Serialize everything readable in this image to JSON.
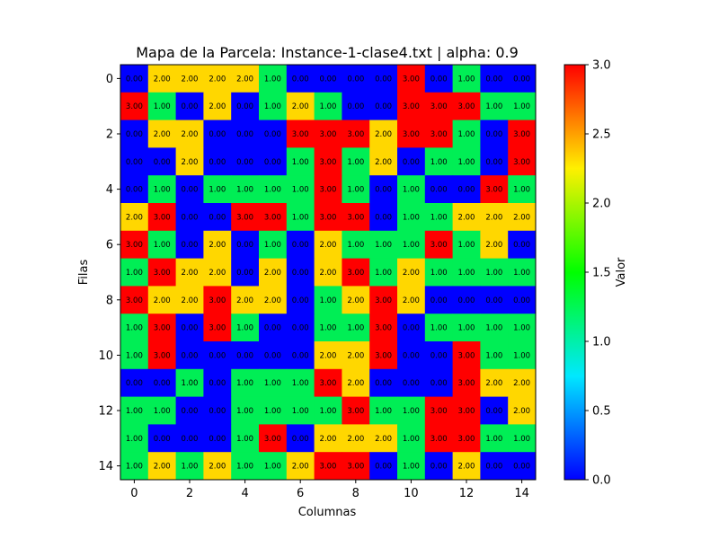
{
  "chart_data": {
    "type": "heatmap",
    "title": "Mapa de la Parcela: Instance-1-clase4.txt | alpha: 0.9",
    "xlabel": "Columnas",
    "ylabel": "Filas",
    "x_ticks": [
      "0",
      "2",
      "4",
      "6",
      "8",
      "10",
      "12",
      "14"
    ],
    "y_ticks": [
      "0",
      "2",
      "4",
      "6",
      "8",
      "10",
      "12",
      "14"
    ],
    "colorbar": {
      "label": "Valor",
      "range": [
        0,
        3
      ],
      "ticks": [
        "0.0",
        "0.5",
        "1.0",
        "1.5",
        "2.0",
        "2.5",
        "3.0"
      ]
    },
    "value_colors": {
      "0": "#0000ff",
      "1": "#00ee55",
      "2": "#ffd700",
      "3": "#ff0000"
    },
    "colorbar_stops": [
      "#0000ff",
      "#00e8ff",
      "#00ff00",
      "#fff000",
      "#ff0000"
    ],
    "value_format_decimals": 2,
    "values": [
      [
        0,
        2,
        2,
        2,
        2,
        1,
        0,
        0,
        0,
        0,
        3,
        0,
        1,
        0,
        0
      ],
      [
        3,
        1,
        0,
        2,
        0,
        1,
        2,
        1,
        0,
        0,
        3,
        3,
        3,
        1,
        1
      ],
      [
        0,
        2,
        2,
        0,
        0,
        0,
        3,
        3,
        3,
        2,
        3,
        3,
        1,
        0,
        3
      ],
      [
        0,
        0,
        2,
        0,
        0,
        0,
        1,
        3,
        1,
        2,
        0,
        1,
        1,
        0,
        3
      ],
      [
        0,
        1,
        0,
        1,
        1,
        1,
        1,
        3,
        1,
        0,
        1,
        0,
        0,
        3,
        1
      ],
      [
        2,
        3,
        0,
        0,
        3,
        3,
        1,
        3,
        3,
        0,
        1,
        1,
        2,
        2,
        2
      ],
      [
        3,
        1,
        0,
        2,
        0,
        1,
        0,
        2,
        1,
        1,
        1,
        3,
        1,
        2,
        0
      ],
      [
        1,
        3,
        2,
        2,
        0,
        2,
        0,
        2,
        3,
        1,
        2,
        1,
        1,
        1,
        1
      ],
      [
        3,
        2,
        2,
        3,
        2,
        2,
        0,
        1,
        2,
        3,
        2,
        0,
        0,
        0,
        0
      ],
      [
        1,
        3,
        0,
        3,
        1,
        0,
        0,
        1,
        1,
        3,
        0,
        1,
        1,
        1,
        1
      ],
      [
        1,
        3,
        0,
        0,
        0,
        0,
        0,
        2,
        2,
        3,
        0,
        0,
        3,
        1,
        1
      ],
      [
        0,
        0,
        1,
        0,
        1,
        1,
        1,
        3,
        2,
        0,
        0,
        0,
        3,
        2,
        2
      ],
      [
        1,
        1,
        0,
        0,
        1,
        1,
        1,
        1,
        3,
        1,
        1,
        3,
        3,
        0,
        2
      ],
      [
        1,
        0,
        0,
        0,
        1,
        3,
        0,
        2,
        2,
        2,
        1,
        3,
        3,
        1,
        1
      ],
      [
        1,
        2,
        1,
        2,
        1,
        1,
        2,
        3,
        3,
        0,
        1,
        0,
        2,
        0,
        0
      ]
    ]
  }
}
